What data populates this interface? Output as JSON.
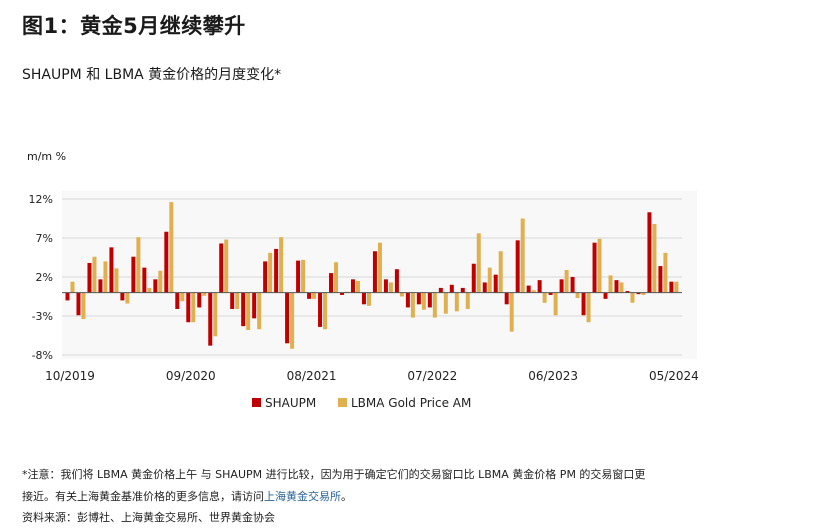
{
  "title": "图1：黄金5月继续攀升",
  "subtitle": "SHAUPM 和 LBMA 黄金价格的月度变化*",
  "chart_data": {
    "type": "bar",
    "ylabel": "m/m %",
    "ylim": [
      -8,
      12
    ],
    "yticks": [
      "12%",
      "7%",
      "2%",
      "-3%",
      "-8%"
    ],
    "ytick_values": [
      12,
      7,
      2,
      -3,
      -8
    ],
    "xtick_labels": [
      "10/2019",
      "09/2020",
      "08/2021",
      "07/2022",
      "06/2023",
      "05/2024"
    ],
    "xtick_indices": [
      0,
      11,
      22,
      33,
      44,
      55
    ],
    "grid": true,
    "legend_position": "bottom",
    "categories": [
      "10/2019",
      "11/2019",
      "12/2019",
      "01/2020",
      "02/2020",
      "03/2020",
      "04/2020",
      "05/2020",
      "06/2020",
      "07/2020",
      "08/2020",
      "09/2020",
      "10/2020",
      "11/2020",
      "12/2020",
      "01/2021",
      "02/2021",
      "03/2021",
      "04/2021",
      "05/2021",
      "06/2021",
      "07/2021",
      "08/2021",
      "09/2021",
      "10/2021",
      "11/2021",
      "12/2021",
      "01/2022",
      "02/2022",
      "03/2022",
      "04/2022",
      "05/2022",
      "06/2022",
      "07/2022",
      "08/2022",
      "09/2022",
      "10/2022",
      "11/2022",
      "12/2022",
      "01/2023",
      "02/2023",
      "03/2023",
      "04/2023",
      "05/2023",
      "06/2023",
      "07/2023",
      "08/2023",
      "09/2023",
      "10/2023",
      "11/2023",
      "12/2023",
      "01/2024",
      "02/2024",
      "03/2024",
      "04/2024",
      "05/2024"
    ],
    "series": [
      {
        "name": "SHAUPM",
        "color": "#c00000",
        "values": [
          -1.0,
          -2.9,
          3.8,
          1.7,
          5.8,
          -1.0,
          4.6,
          3.2,
          1.7,
          7.8,
          -2.1,
          -3.8,
          -1.9,
          -6.8,
          6.3,
          -2.1,
          -4.3,
          -3.3,
          4.0,
          5.6,
          -6.5,
          4.1,
          -0.8,
          -4.4,
          2.5,
          -0.3,
          1.7,
          -1.5,
          5.3,
          1.7,
          3.0,
          -1.9,
          -1.5,
          -1.9,
          0.6,
          1.0,
          0.6,
          3.7,
          1.3,
          2.3,
          -1.5,
          6.7,
          0.9,
          1.6,
          -0.3,
          1.7,
          2.0,
          -2.9,
          6.4,
          -0.8,
          1.6,
          0.2,
          -0.2,
          10.3,
          3.4,
          1.4
        ]
      },
      {
        "name": "LBMA Gold Price AM",
        "color": "#e0b050",
        "values": [
          1.4,
          -3.4,
          4.6,
          4.0,
          3.1,
          -1.4,
          7.1,
          0.6,
          2.8,
          11.6,
          -1.1,
          -3.8,
          -0.4,
          -5.6,
          6.8,
          -2.1,
          -4.8,
          -4.7,
          5.1,
          7.1,
          -7.2,
          4.2,
          -0.8,
          -4.7,
          3.9,
          0.1,
          1.5,
          -1.7,
          6.4,
          1.3,
          -0.5,
          -3.2,
          -2.2,
          -3.2,
          -2.7,
          -2.4,
          -2.1,
          7.6,
          3.2,
          5.3,
          -5.0,
          9.5,
          0.3,
          -1.3,
          -2.9,
          2.9,
          -0.7,
          -3.8,
          6.9,
          2.2,
          1.3,
          -1.3,
          -0.3,
          8.8,
          5.1,
          1.4
        ]
      }
    ]
  },
  "footnotes": {
    "line1": "*注意：我们将 LBMA 黄金价格上午 与 SHAUPM 进行比较，因为用于确定它们的交易窗口比 LBMA 黄金价格 PM 的交易窗口更",
    "line2_prefix": "接近。有关上海黄金基准价格的更多信息，请访问",
    "line2_link": "上海黄金交易所",
    "line2_suffix": "。",
    "source": "资料来源：彭博社、上海黄金交易所、世界黄金协会"
  }
}
